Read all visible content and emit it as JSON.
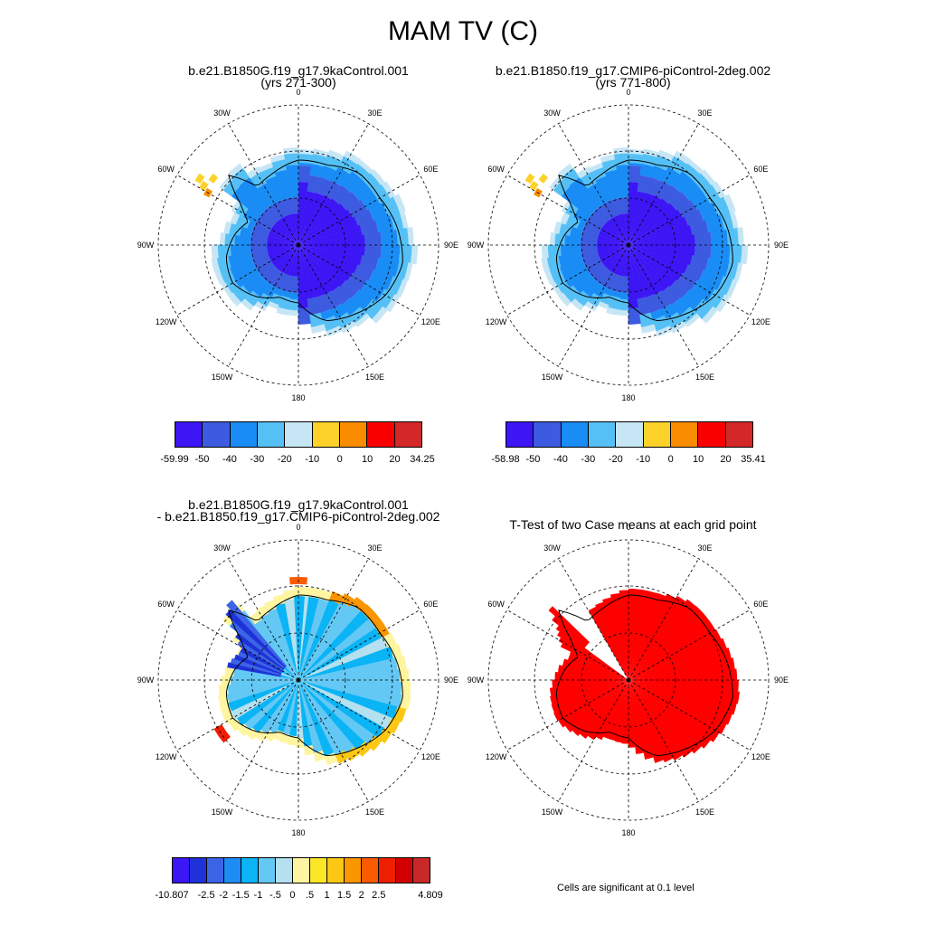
{
  "title": "MAM TV (C)",
  "panels": [
    {
      "id": "p1",
      "title_lines": [
        "b.e21.B1850G.f19_g17.9kaControl.001",
        "(yrs 271-300)"
      ]
    },
    {
      "id": "p2",
      "title_lines": [
        "b.e21.B1850.f19_g17.CMIP6-piControl-2deg.002",
        "(yrs 771-800)"
      ]
    },
    {
      "id": "p3",
      "title_lines": [
        "b.e21.B1850G.f19_g17.9kaControl.001",
        "- b.e21.B1850.f19_g17.CMIP6-piControl-2deg.002"
      ]
    },
    {
      "id": "p4",
      "title_lines": [
        "T-Test of two Case means at each grid point"
      ]
    }
  ],
  "longitude_labels": [
    "0",
    "30E",
    "60E",
    "90E",
    "120E",
    "150E",
    "180",
    "150W",
    "120W",
    "90W",
    "60W",
    "30W"
  ],
  "colorbars": [
    {
      "id": "cb1",
      "labels": [
        "-59.99",
        "-50",
        "-40",
        "-30",
        "-20",
        "-10",
        "0",
        "10",
        "20",
        "34.25"
      ],
      "colors": [
        "#3c16f5",
        "#3d5be0",
        "#1a8cf5",
        "#55c0f5",
        "#c6e6f5",
        "#fcd22a",
        "#fa8c00",
        "#fa0000",
        "#d22828"
      ]
    },
    {
      "id": "cb2",
      "labels": [
        "-58.98",
        "-50",
        "-40",
        "-30",
        "-20",
        "-10",
        "0",
        "10",
        "20",
        "35.41"
      ],
      "colors": [
        "#3c16f5",
        "#3d5be0",
        "#1a8cf5",
        "#55c0f5",
        "#c6e6f5",
        "#fcd22a",
        "#fa8c00",
        "#fa0000",
        "#d22828"
      ]
    },
    {
      "id": "cb3",
      "labels": [
        "-10.807",
        "-2.5",
        "-2",
        "-1.5",
        "-1",
        "-.5",
        "0",
        ".5",
        "1",
        "1.5",
        "2",
        "2.5",
        "4.809"
      ],
      "colors": [
        "#3c16f5",
        "#1e32d8",
        "#3c64e6",
        "#1e8cf5",
        "#0ab4f5",
        "#64c8f5",
        "#b4e0f0",
        "#fff5a0",
        "#fce628",
        "#fcc814",
        "#fa9600",
        "#fa5a00",
        "#f01e00",
        "#d20000",
        "#c82828"
      ]
    }
  ],
  "colorbar_legend": {
    "significance": "#ff0000"
  },
  "note": "Cells are significant at 0.1 level"
}
